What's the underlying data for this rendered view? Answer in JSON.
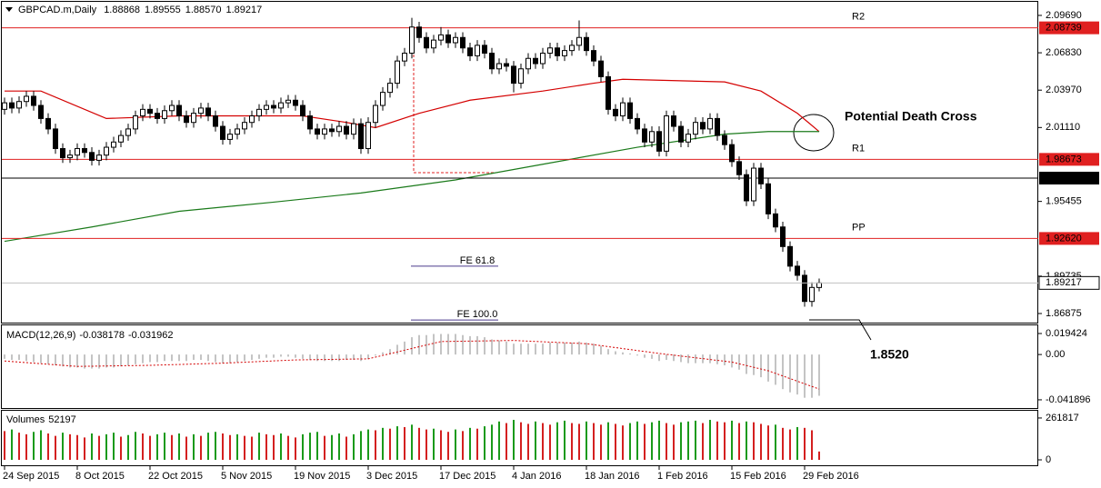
{
  "chart_data": {
    "type": "candlestick",
    "header": {
      "symbol": "GBPCAD.m,Daily",
      "last_labels": [
        "1.88868",
        "1.89555",
        "1.88570",
        "1.89217"
      ]
    },
    "categories": [
      "24 Sep 2015",
      null,
      null,
      null,
      null,
      null,
      null,
      null,
      null,
      null,
      "8 Oct 2015",
      null,
      null,
      null,
      null,
      null,
      null,
      null,
      null,
      null,
      "22 Oct 2015",
      null,
      null,
      null,
      null,
      null,
      null,
      null,
      null,
      null,
      "5 Nov 2015",
      null,
      null,
      null,
      null,
      null,
      null,
      null,
      null,
      null,
      "19 Nov 2015",
      null,
      null,
      null,
      null,
      null,
      null,
      null,
      null,
      null,
      "3 Dec 2015",
      null,
      null,
      null,
      null,
      null,
      null,
      null,
      null,
      null,
      "17 Dec 2015",
      null,
      null,
      null,
      null,
      null,
      null,
      null,
      null,
      null,
      "4 Jan 2016",
      null,
      null,
      null,
      null,
      null,
      null,
      null,
      null,
      null,
      "18 Jan 2016",
      null,
      null,
      null,
      null,
      null,
      null,
      null,
      null,
      null,
      "1 Feb 2016",
      null,
      null,
      null,
      null,
      null,
      null,
      null,
      null,
      null,
      "15 Feb 2016",
      null,
      null,
      null,
      null,
      null,
      null,
      null,
      null,
      null,
      "29 Feb 2016",
      null,
      null
    ],
    "ohlc": [
      [
        2.025,
        2.034,
        2.021,
        2.03
      ],
      [
        2.03,
        2.034,
        2.022,
        2.026
      ],
      [
        2.026,
        2.035,
        2.022,
        2.031
      ],
      [
        2.031,
        2.039,
        2.027,
        2.035
      ],
      [
        2.035,
        2.039,
        2.024,
        2.028
      ],
      [
        2.028,
        2.032,
        2.014,
        2.018
      ],
      [
        2.018,
        2.022,
        2.006,
        2.01
      ],
      [
        2.01,
        2.014,
        1.991,
        1.995
      ],
      [
        1.995,
        1.999,
        1.984,
        1.988
      ],
      [
        1.988,
        1.994,
        1.984,
        1.99
      ],
      [
        1.99,
        1.999,
        1.986,
        1.995
      ],
      [
        1.995,
        1.999,
        1.988,
        1.992
      ],
      [
        1.992,
        1.996,
        1.982,
        1.986
      ],
      [
        1.986,
        1.994,
        1.982,
        1.99
      ],
      [
        1.99,
        2.0,
        1.986,
        1.996
      ],
      [
        1.996,
        2.004,
        1.992,
        2.0
      ],
      [
        2.0,
        2.009,
        1.996,
        2.005
      ],
      [
        2.005,
        2.014,
        2.001,
        2.01
      ],
      [
        2.01,
        2.024,
        2.006,
        2.02
      ],
      [
        2.02,
        2.029,
        2.016,
        2.025
      ],
      [
        2.025,
        2.029,
        2.018,
        2.022
      ],
      [
        2.022,
        2.026,
        2.014,
        2.018
      ],
      [
        2.018,
        2.028,
        2.014,
        2.024
      ],
      [
        2.024,
        2.032,
        2.02,
        2.028
      ],
      [
        2.028,
        2.032,
        2.016,
        2.02
      ],
      [
        2.02,
        2.024,
        2.011,
        2.015
      ],
      [
        2.015,
        2.026,
        2.011,
        2.022
      ],
      [
        2.022,
        2.03,
        2.018,
        2.026
      ],
      [
        2.026,
        2.03,
        2.016,
        2.02
      ],
      [
        2.02,
        2.024,
        2.008,
        2.012
      ],
      [
        2.012,
        2.016,
        1.998,
        2.002
      ],
      [
        2.002,
        2.01,
        1.998,
        2.006
      ],
      [
        2.006,
        2.014,
        2.002,
        2.01
      ],
      [
        2.01,
        2.019,
        2.006,
        2.015
      ],
      [
        2.015,
        2.024,
        2.011,
        2.02
      ],
      [
        2.02,
        2.029,
        2.016,
        2.025
      ],
      [
        2.025,
        2.032,
        2.021,
        2.028
      ],
      [
        2.028,
        2.032,
        2.022,
        2.026
      ],
      [
        2.026,
        2.034,
        2.022,
        2.03
      ],
      [
        2.03,
        2.036,
        2.026,
        2.032
      ],
      [
        2.032,
        2.036,
        2.024,
        2.028
      ],
      [
        2.028,
        2.032,
        2.016,
        2.02
      ],
      [
        2.02,
        2.024,
        2.006,
        2.01
      ],
      [
        2.01,
        2.014,
        2.002,
        2.006
      ],
      [
        2.006,
        2.014,
        2.002,
        2.01
      ],
      [
        2.01,
        2.014,
        2.004,
        2.008
      ],
      [
        2.008,
        2.016,
        2.004,
        2.012
      ],
      [
        2.012,
        2.016,
        2.002,
        2.006
      ],
      [
        2.006,
        2.018,
        2.002,
        2.014
      ],
      [
        2.014,
        2.018,
        1.991,
        1.995
      ],
      [
        1.995,
        2.019,
        1.991,
        2.015
      ],
      [
        2.015,
        2.032,
        2.011,
        2.028
      ],
      [
        2.028,
        2.042,
        2.024,
        2.038
      ],
      [
        2.038,
        2.049,
        2.034,
        2.045
      ],
      [
        2.045,
        2.066,
        2.041,
        2.062
      ],
      [
        2.062,
        2.072,
        2.058,
        2.068
      ],
      [
        2.068,
        2.095,
        2.064,
        2.088
      ],
      [
        2.088,
        2.092,
        2.076,
        2.08
      ],
      [
        2.08,
        2.084,
        2.068,
        2.072
      ],
      [
        2.072,
        2.082,
        2.068,
        2.078
      ],
      [
        2.078,
        2.088,
        2.074,
        2.082
      ],
      [
        2.082,
        2.086,
        2.072,
        2.076
      ],
      [
        2.076,
        2.084,
        2.072,
        2.08
      ],
      [
        2.08,
        2.084,
        2.068,
        2.072
      ],
      [
        2.072,
        2.076,
        2.062,
        2.066
      ],
      [
        2.066,
        2.078,
        2.062,
        2.074
      ],
      [
        2.074,
        2.078,
        2.064,
        2.068
      ],
      [
        2.068,
        2.072,
        2.052,
        2.056
      ],
      [
        2.056,
        2.064,
        2.052,
        2.06
      ],
      [
        2.06,
        2.064,
        2.054,
        2.058
      ],
      [
        2.058,
        2.062,
        2.038,
        2.045
      ],
      [
        2.045,
        2.06,
        2.041,
        2.056
      ],
      [
        2.056,
        2.068,
        2.052,
        2.064
      ],
      [
        2.064,
        2.068,
        2.056,
        2.06
      ],
      [
        2.06,
        2.072,
        2.056,
        2.068
      ],
      [
        2.068,
        2.076,
        2.064,
        2.072
      ],
      [
        2.072,
        2.076,
        2.062,
        2.066
      ],
      [
        2.066,
        2.074,
        2.062,
        2.07
      ],
      [
        2.07,
        2.078,
        2.066,
        2.074
      ],
      [
        2.074,
        2.093,
        2.07,
        2.08
      ],
      [
        2.08,
        2.084,
        2.066,
        2.07
      ],
      [
        2.07,
        2.074,
        2.058,
        2.062
      ],
      [
        2.062,
        2.066,
        2.046,
        2.05
      ],
      [
        2.05,
        2.054,
        2.021,
        2.025
      ],
      [
        2.025,
        2.029,
        2.016,
        2.02
      ],
      [
        2.02,
        2.034,
        2.016,
        2.03
      ],
      [
        2.03,
        2.034,
        2.014,
        2.018
      ],
      [
        2.018,
        2.022,
        2.006,
        2.01
      ],
      [
        2.01,
        2.014,
        1.996,
        2.0
      ],
      [
        2.0,
        2.012,
        1.996,
        2.008
      ],
      [
        2.008,
        2.012,
        1.989,
        1.993
      ],
      [
        1.993,
        2.024,
        1.989,
        2.02
      ],
      [
        2.02,
        2.024,
        2.008,
        2.012
      ],
      [
        2.012,
        2.016,
        1.996,
        2.0
      ],
      [
        2.0,
        2.01,
        1.996,
        2.006
      ],
      [
        2.006,
        2.019,
        2.002,
        2.015
      ],
      [
        2.015,
        2.019,
        2.006,
        2.01
      ],
      [
        2.01,
        2.022,
        2.006,
        2.018
      ],
      [
        2.018,
        2.022,
        2.001,
        2.005
      ],
      [
        2.005,
        2.009,
        1.994,
        1.998
      ],
      [
        1.998,
        2.002,
        1.981,
        1.985
      ],
      [
        1.985,
        1.989,
        1.971,
        1.975
      ],
      [
        1.975,
        1.979,
        1.951,
        1.955
      ],
      [
        1.955,
        1.984,
        1.951,
        1.98
      ],
      [
        1.98,
        1.984,
        1.964,
        1.968
      ],
      [
        1.968,
        1.972,
        1.941,
        1.945
      ],
      [
        1.945,
        1.949,
        1.931,
        1.935
      ],
      [
        1.935,
        1.939,
        1.916,
        1.92
      ],
      [
        1.92,
        1.924,
        1.901,
        1.905
      ],
      [
        1.905,
        1.909,
        1.894,
        1.898
      ],
      [
        1.898,
        1.902,
        1.874,
        1.878
      ],
      [
        1.878,
        1.8927,
        1.874,
        1.8887
      ],
      [
        1.88868,
        1.89555,
        1.8857,
        1.89217
      ]
    ],
    "ylim": [
      1.8618,
      2.1073
    ],
    "yticks": [
      {
        "value": 2.0969,
        "label": "2.09690"
      },
      {
        "value": 2.0683,
        "label": "2.06830"
      },
      {
        "value": 2.0397,
        "label": "2.03970"
      },
      {
        "value": 2.0111,
        "label": "2.01110"
      },
      1.95455,
      1.89735,
      1.86875
    ],
    "moving_averages": [
      {
        "color": "#d40000",
        "x": [
          0,
          5,
          14,
          24,
          41,
          47,
          51,
          57,
          64,
          74,
          81,
          85,
          99,
          104,
          109,
          112
        ],
        "values": [
          2.039,
          2.039,
          2.018,
          2.02,
          2.02,
          2.015,
          2.011,
          2.022,
          2.032,
          2.039,
          2.045,
          2.048,
          2.046,
          2.039,
          2.022,
          2.008
        ]
      },
      {
        "color": "#1a7a1a",
        "x": [
          0,
          12,
          24,
          37,
          49,
          62,
          74,
          87,
          99,
          105,
          112
        ],
        "values": [
          1.924,
          1.935,
          1.947,
          1.954,
          1.961,
          1.971,
          1.983,
          1.996,
          2.006,
          2.008,
          2.008
        ]
      }
    ],
    "levels": [
      {
        "name": "R2",
        "value": 2.08739,
        "color": "#e02020"
      },
      {
        "name": "R1",
        "value": 1.98673,
        "color": "#e02020"
      },
      {
        "value": 1.97239,
        "color": "#000000"
      },
      {
        "name": "PP",
        "value": 1.9262,
        "value_label": "1.92620",
        "color": "#e02020"
      }
    ],
    "fibonacci": [
      {
        "name": "FE 61.8",
        "value": 1.905
      },
      {
        "name": "FE 100.0",
        "value": 1.8638
      }
    ],
    "annotations": {
      "death_cross": "Potential  Death Cross",
      "target": "1.8520"
    },
    "macd": {
      "title": "MACD(12,26,9)",
      "histogram": [
        -0.004,
        -0.005,
        -0.005,
        -0.006,
        -0.007,
        -0.008,
        -0.009,
        -0.01,
        -0.011,
        -0.012,
        -0.012,
        -0.013,
        -0.013,
        -0.013,
        -0.012,
        -0.012,
        -0.011,
        -0.01,
        -0.009,
        -0.008,
        -0.007,
        -0.007,
        -0.006,
        -0.006,
        -0.006,
        -0.006,
        -0.005,
        -0.005,
        -0.006,
        -0.007,
        -0.008,
        -0.008,
        -0.007,
        -0.006,
        -0.005,
        -0.004,
        -0.003,
        -0.003,
        -0.002,
        -0.002,
        -0.003,
        -0.004,
        -0.005,
        -0.006,
        -0.006,
        -0.006,
        -0.006,
        -0.005,
        -0.005,
        -0.006,
        -0.004,
        -0.001,
        0.002,
        0.005,
        0.009,
        0.012,
        0.016,
        0.018,
        0.018,
        0.019,
        0.019,
        0.019,
        0.019,
        0.018,
        0.017,
        0.017,
        0.016,
        0.014,
        0.013,
        0.012,
        0.01,
        0.01,
        0.01,
        0.01,
        0.01,
        0.011,
        0.011,
        0.011,
        0.011,
        0.012,
        0.011,
        0.01,
        0.008,
        0.005,
        0.003,
        0.002,
        0.001,
        -0.001,
        -0.003,
        -0.004,
        -0.006,
        -0.005,
        -0.006,
        -0.007,
        -0.008,
        -0.008,
        -0.008,
        -0.008,
        -0.009,
        -0.01,
        -0.012,
        -0.014,
        -0.018,
        -0.019,
        -0.021,
        -0.025,
        -0.028,
        -0.032,
        -0.035,
        -0.037,
        -0.04,
        -0.04,
        -0.038178
      ],
      "signal": {
        "color": "#d40000",
        "x": [
          0,
          10,
          20,
          30,
          40,
          50,
          60,
          70,
          80,
          90,
          100,
          105,
          112
        ],
        "values": [
          -0.006,
          -0.011,
          -0.01,
          -0.008,
          -0.005,
          -0.004,
          0.012,
          0.013,
          0.01,
          0.001,
          -0.007,
          -0.015,
          -0.031962
        ]
      },
      "ylim": [
        -0.0495,
        0.027
      ],
      "yticks": [
        0.019424,
        {
          "value": 0,
          "label": "0.00"
        },
        -0.041896
      ]
    },
    "volumes": {
      "title": "Volumes",
      "values": [
        180000,
        190000,
        170000,
        160000,
        175000,
        185000,
        165000,
        150000,
        170000,
        160000,
        155000,
        140000,
        165000,
        150000,
        160000,
        170000,
        145000,
        155000,
        175000,
        165000,
        150000,
        160000,
        170000,
        155000,
        165000,
        145000,
        160000,
        150000,
        170000,
        175000,
        165000,
        155000,
        160000,
        150000,
        145000,
        170000,
        160000,
        155000,
        165000,
        150000,
        140000,
        160000,
        170000,
        175000,
        150000,
        155000,
        165000,
        145000,
        160000,
        180000,
        190000,
        185000,
        200000,
        195000,
        210000,
        205000,
        220000,
        200000,
        190000,
        195000,
        185000,
        175000,
        190000,
        180000,
        200000,
        195000,
        210000,
        220000,
        240000,
        230000,
        250000,
        235000,
        225000,
        240000,
        230000,
        220000,
        235000,
        245000,
        230000,
        225000,
        240000,
        230000,
        220000,
        235000,
        225000,
        215000,
        230000,
        240000,
        225000,
        235000,
        245000,
        230000,
        220000,
        235000,
        240000,
        245000,
        230000,
        250000,
        240000,
        235000,
        245000,
        230000,
        240000,
        235000,
        225000,
        215000,
        220000,
        200000,
        190000,
        205000,
        200000,
        185000,
        52197
      ],
      "ylim": [
        -34000,
        307000
      ],
      "yticks": [
        261817,
        0
      ]
    }
  }
}
